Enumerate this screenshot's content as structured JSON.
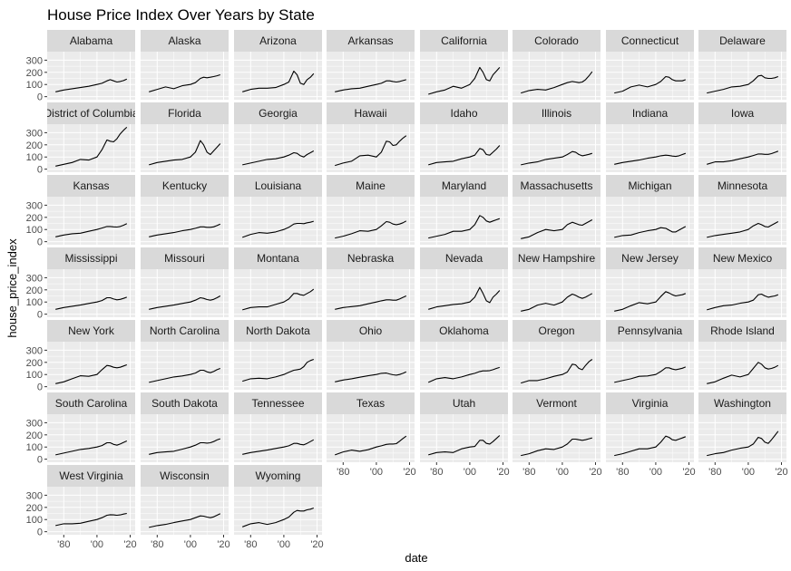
{
  "chart_data": {
    "type": "line",
    "title": "House Price Index Over Years by State",
    "xlabel": "date",
    "ylabel": "house_price_index",
    "x_ticks": [
      {
        "year": 1980,
        "label": "'80"
      },
      {
        "year": 2000,
        "label": "'00"
      },
      {
        "year": 2020,
        "label": "'20"
      }
    ],
    "y_ticks": [
      0,
      100,
      200,
      300
    ],
    "xlim": [
      1970,
      2023
    ],
    "ylim": [
      -25,
      370
    ],
    "grid": true,
    "x": [
      1975,
      1980,
      1985,
      1990,
      1995,
      2000,
      2003,
      2006,
      2008,
      2010,
      2012,
      2014,
      2016,
      2018
    ],
    "series": [
      {
        "name": "Alabama",
        "values": [
          40,
          55,
          65,
          75,
          85,
          100,
          110,
          130,
          140,
          130,
          120,
          125,
          132,
          145
        ]
      },
      {
        "name": "Alaska",
        "values": [
          40,
          60,
          80,
          65,
          90,
          100,
          115,
          150,
          160,
          155,
          160,
          165,
          172,
          180
        ]
      },
      {
        "name": "Arizona",
        "values": [
          40,
          60,
          70,
          70,
          75,
          100,
          120,
          210,
          180,
          110,
          100,
          140,
          160,
          190
        ]
      },
      {
        "name": "Arkansas",
        "values": [
          40,
          55,
          65,
          70,
          85,
          100,
          110,
          130,
          130,
          125,
          120,
          125,
          132,
          140
        ]
      },
      {
        "name": "California",
        "values": [
          20,
          40,
          55,
          85,
          70,
          100,
          150,
          240,
          200,
          140,
          130,
          180,
          210,
          240
        ]
      },
      {
        "name": "Colorado",
        "values": [
          30,
          50,
          60,
          55,
          75,
          100,
          115,
          125,
          120,
          115,
          120,
          140,
          170,
          205
        ]
      },
      {
        "name": "Connecticut",
        "values": [
          30,
          45,
          80,
          95,
          80,
          100,
          125,
          165,
          160,
          140,
          130,
          130,
          130,
          140
        ]
      },
      {
        "name": "Delaware",
        "values": [
          30,
          45,
          60,
          80,
          85,
          100,
          130,
          170,
          175,
          155,
          150,
          150,
          155,
          165
        ]
      },
      {
        "name": "District of Columbia",
        "values": [
          25,
          40,
          55,
          80,
          75,
          100,
          160,
          240,
          230,
          225,
          250,
          290,
          320,
          345
        ]
      },
      {
        "name": "Florida",
        "values": [
          35,
          55,
          65,
          75,
          80,
          100,
          140,
          235,
          200,
          140,
          120,
          150,
          180,
          210
        ]
      },
      {
        "name": "Georgia",
        "values": [
          35,
          50,
          65,
          80,
          85,
          100,
          115,
          135,
          130,
          110,
          100,
          120,
          135,
          150
        ]
      },
      {
        "name": "Hawaii",
        "values": [
          30,
          50,
          65,
          110,
          115,
          100,
          140,
          230,
          225,
          195,
          200,
          230,
          255,
          275
        ]
      },
      {
        "name": "Idaho",
        "values": [
          35,
          55,
          60,
          65,
          85,
          100,
          115,
          170,
          160,
          120,
          115,
          140,
          165,
          195
        ]
      },
      {
        "name": "Illinois",
        "values": [
          35,
          50,
          60,
          80,
          90,
          100,
          120,
          145,
          140,
          120,
          110,
          115,
          122,
          130
        ]
      },
      {
        "name": "Indiana",
        "values": [
          40,
          55,
          65,
          75,
          90,
          100,
          110,
          115,
          112,
          108,
          105,
          110,
          120,
          130
        ]
      },
      {
        "name": "Iowa",
        "values": [
          40,
          60,
          60,
          70,
          85,
          100,
          112,
          125,
          125,
          122,
          122,
          128,
          138,
          148
        ]
      },
      {
        "name": "Kansas",
        "values": [
          40,
          55,
          65,
          70,
          85,
          100,
          112,
          125,
          125,
          122,
          120,
          125,
          135,
          148
        ]
      },
      {
        "name": "Kentucky",
        "values": [
          40,
          55,
          65,
          75,
          90,
          100,
          110,
          122,
          122,
          118,
          118,
          122,
          132,
          145
        ]
      },
      {
        "name": "Louisiana",
        "values": [
          35,
          60,
          75,
          70,
          80,
          100,
          118,
          145,
          150,
          150,
          148,
          155,
          160,
          168
        ]
      },
      {
        "name": "Maine",
        "values": [
          30,
          45,
          65,
          90,
          85,
          100,
          130,
          165,
          160,
          145,
          140,
          145,
          155,
          170
        ]
      },
      {
        "name": "Maryland",
        "values": [
          30,
          45,
          60,
          85,
          85,
          100,
          140,
          215,
          200,
          170,
          160,
          170,
          180,
          190
        ]
      },
      {
        "name": "Massachusetts",
        "values": [
          25,
          40,
          75,
          100,
          90,
          100,
          140,
          160,
          150,
          140,
          135,
          150,
          165,
          180
        ]
      },
      {
        "name": "Michigan",
        "values": [
          35,
          50,
          55,
          75,
          90,
          100,
          115,
          110,
          95,
          80,
          80,
          95,
          110,
          125
        ]
      },
      {
        "name": "Minnesota",
        "values": [
          35,
          50,
          60,
          70,
          80,
          100,
          130,
          150,
          140,
          125,
          120,
          135,
          150,
          165
        ]
      },
      {
        "name": "Mississippi",
        "values": [
          40,
          55,
          65,
          75,
          88,
          100,
          112,
          135,
          135,
          125,
          118,
          122,
          130,
          140
        ]
      },
      {
        "name": "Missouri",
        "values": [
          40,
          55,
          65,
          75,
          88,
          100,
          115,
          135,
          130,
          120,
          115,
          122,
          135,
          150
        ]
      },
      {
        "name": "Montana",
        "values": [
          35,
          55,
          60,
          60,
          80,
          100,
          125,
          170,
          170,
          160,
          155,
          170,
          185,
          205
        ]
      },
      {
        "name": "Nebraska",
        "values": [
          40,
          55,
          62,
          70,
          85,
          100,
          110,
          118,
          118,
          115,
          115,
          125,
          138,
          150
        ]
      },
      {
        "name": "Nevada",
        "values": [
          40,
          60,
          70,
          80,
          85,
          100,
          140,
          220,
          170,
          110,
          95,
          140,
          165,
          195
        ]
      },
      {
        "name": "New Hampshire",
        "values": [
          25,
          40,
          75,
          90,
          75,
          100,
          140,
          165,
          155,
          140,
          130,
          140,
          155,
          170
        ]
      },
      {
        "name": "New Jersey",
        "values": [
          25,
          40,
          70,
          95,
          85,
          100,
          145,
          185,
          175,
          160,
          150,
          155,
          160,
          170
        ]
      },
      {
        "name": "New Mexico",
        "values": [
          35,
          55,
          70,
          75,
          90,
          100,
          115,
          160,
          165,
          150,
          140,
          145,
          150,
          160
        ]
      },
      {
        "name": "New York",
        "values": [
          25,
          40,
          65,
          90,
          85,
          100,
          140,
          175,
          170,
          160,
          155,
          160,
          170,
          180
        ]
      },
      {
        "name": "North Carolina",
        "values": [
          35,
          50,
          65,
          80,
          88,
          100,
          112,
          135,
          135,
          122,
          115,
          125,
          140,
          150
        ]
      },
      {
        "name": "North Dakota",
        "values": [
          45,
          65,
          70,
          65,
          80,
          100,
          118,
          135,
          140,
          145,
          165,
          200,
          215,
          225
        ]
      },
      {
        "name": "Ohio",
        "values": [
          40,
          55,
          65,
          78,
          90,
          100,
          110,
          112,
          105,
          98,
          95,
          100,
          110,
          122
        ]
      },
      {
        "name": "Oklahoma",
        "values": [
          35,
          65,
          75,
          65,
          80,
          100,
          110,
          125,
          130,
          130,
          132,
          140,
          150,
          158
        ]
      },
      {
        "name": "Oregon",
        "values": [
          30,
          50,
          50,
          65,
          85,
          100,
          120,
          185,
          180,
          150,
          140,
          175,
          205,
          225
        ]
      },
      {
        "name": "Pennsylvania",
        "values": [
          35,
          50,
          65,
          85,
          88,
          100,
          125,
          155,
          155,
          145,
          140,
          145,
          152,
          162
        ]
      },
      {
        "name": "Rhode Island",
        "values": [
          25,
          40,
          70,
          95,
          80,
          100,
          150,
          200,
          185,
          155,
          145,
          150,
          160,
          175
        ]
      },
      {
        "name": "South Carolina",
        "values": [
          35,
          50,
          65,
          80,
          88,
          100,
          112,
          135,
          135,
          122,
          115,
          125,
          138,
          150
        ]
      },
      {
        "name": "South Dakota",
        "values": [
          40,
          55,
          60,
          65,
          82,
          100,
          115,
          135,
          135,
          132,
          135,
          145,
          158,
          168
        ]
      },
      {
        "name": "Tennessee",
        "values": [
          40,
          55,
          65,
          75,
          88,
          100,
          110,
          130,
          130,
          122,
          118,
          130,
          145,
          160
        ]
      },
      {
        "name": "Texas",
        "values": [
          35,
          60,
          75,
          65,
          78,
          100,
          110,
          122,
          125,
          125,
          128,
          148,
          170,
          190
        ]
      },
      {
        "name": "Utah",
        "values": [
          35,
          55,
          60,
          55,
          85,
          100,
          105,
          155,
          155,
          130,
          125,
          145,
          170,
          195
        ]
      },
      {
        "name": "Vermont",
        "values": [
          30,
          45,
          70,
          85,
          80,
          100,
          125,
          165,
          165,
          160,
          155,
          160,
          168,
          175
        ]
      },
      {
        "name": "Virginia",
        "values": [
          30,
          45,
          65,
          85,
          85,
          100,
          140,
          190,
          180,
          160,
          155,
          165,
          175,
          185
        ]
      },
      {
        "name": "Washington",
        "values": [
          30,
          45,
          55,
          75,
          90,
          100,
          125,
          180,
          170,
          140,
          130,
          160,
          195,
          230
        ]
      },
      {
        "name": "West Virginia",
        "values": [
          50,
          65,
          65,
          70,
          85,
          100,
          115,
          135,
          140,
          138,
          135,
          138,
          145,
          150
        ]
      },
      {
        "name": "Wisconsin",
        "values": [
          35,
          50,
          60,
          75,
          88,
          100,
          115,
          130,
          128,
          120,
          115,
          122,
          135,
          148
        ]
      },
      {
        "name": "Wyoming",
        "values": [
          40,
          65,
          75,
          60,
          75,
          100,
          120,
          160,
          175,
          170,
          170,
          180,
          185,
          195
        ]
      }
    ]
  }
}
